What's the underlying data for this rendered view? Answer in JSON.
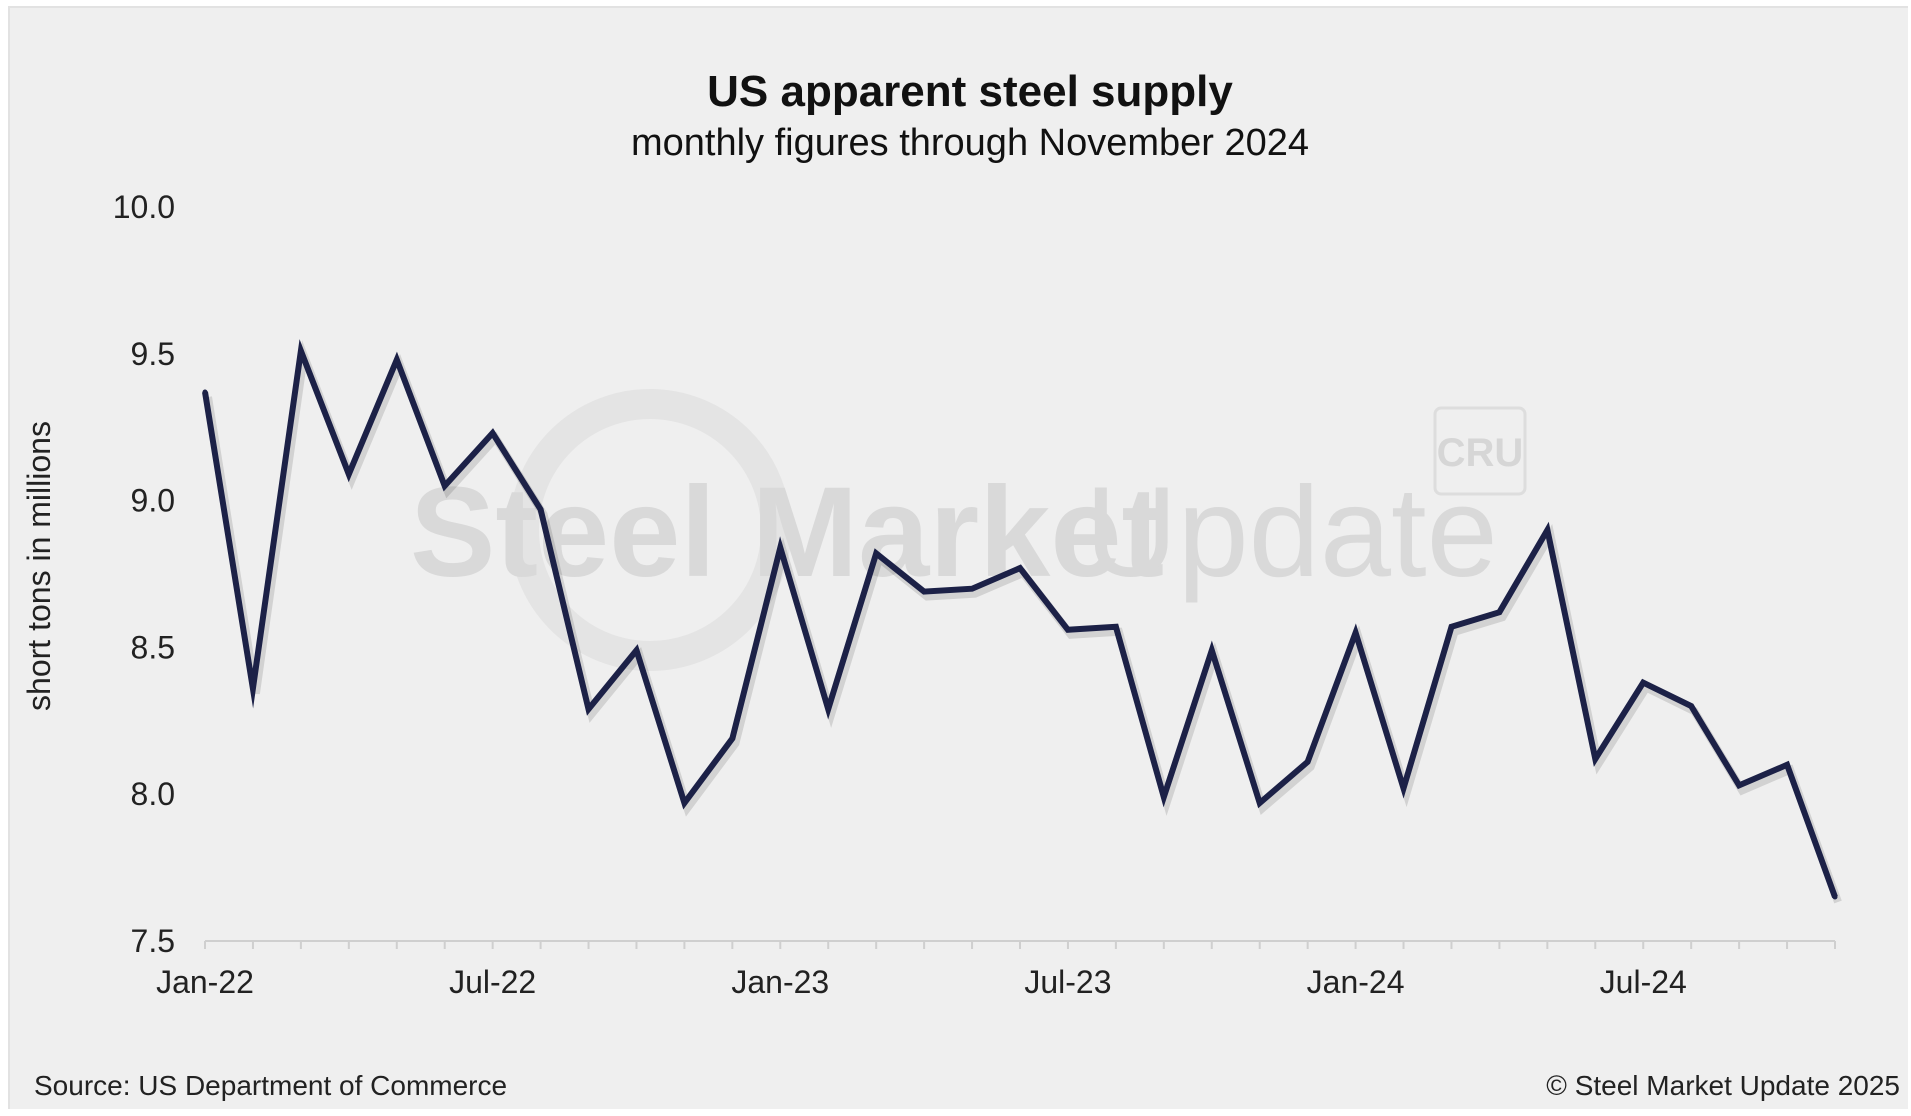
{
  "chart_data": {
    "type": "line",
    "title": "US apparent steel supply",
    "subtitle": "monthly figures through November 2024",
    "ylabel": "short tons in millions",
    "xlabel": "",
    "ylim": [
      7.5,
      10.0
    ],
    "yticks": [
      "10.0",
      "9.5",
      "9.0",
      "8.5",
      "8.0",
      "7.5"
    ],
    "ytick_values": [
      10.0,
      9.5,
      9.0,
      8.5,
      8.0,
      7.5
    ],
    "xtick_labels": [
      {
        "label": "Jan-22",
        "index": 0
      },
      {
        "label": "Jul-22",
        "index": 6
      },
      {
        "label": "Jan-23",
        "index": 12
      },
      {
        "label": "Jul-23",
        "index": 18
      },
      {
        "label": "Jan-24",
        "index": 24
      },
      {
        "label": "Jul-24",
        "index": 30
      }
    ],
    "grid": false,
    "line_color": "#1c2147",
    "x": [
      "2022-01",
      "2022-02",
      "2022-03",
      "2022-04",
      "2022-05",
      "2022-06",
      "2022-07",
      "2022-08",
      "2022-09",
      "2022-10",
      "2022-11",
      "2022-12",
      "2023-01",
      "2023-02",
      "2023-03",
      "2023-04",
      "2023-05",
      "2023-06",
      "2023-07",
      "2023-08",
      "2023-09",
      "2023-10",
      "2023-11",
      "2023-12",
      "2024-01",
      "2024-02",
      "2024-03",
      "2024-04",
      "2024-05",
      "2024-06",
      "2024-07",
      "2024-08",
      "2024-09",
      "2024-10",
      "2024-11"
    ],
    "series": [
      {
        "values": [
          9.37,
          8.36,
          9.51,
          9.09,
          9.48,
          9.05,
          9.23,
          8.97,
          8.29,
          8.49,
          7.97,
          8.19,
          8.84,
          8.29,
          8.82,
          8.69,
          8.7,
          8.77,
          8.56,
          8.57,
          7.99,
          8.49,
          7.97,
          8.11,
          8.55,
          8.02,
          8.57,
          8.62,
          8.9,
          8.12,
          8.38,
          8.3,
          8.03,
          8.1,
          7.65
        ]
      }
    ]
  },
  "watermark": {
    "brand": "Steel Market Update",
    "brand_bold": "Steel Market",
    "brand_light": "Update",
    "badge": "CRU"
  },
  "footer": {
    "source": "Source: US Department of Commerce",
    "copyright": "© Steel Market Update 2025"
  }
}
